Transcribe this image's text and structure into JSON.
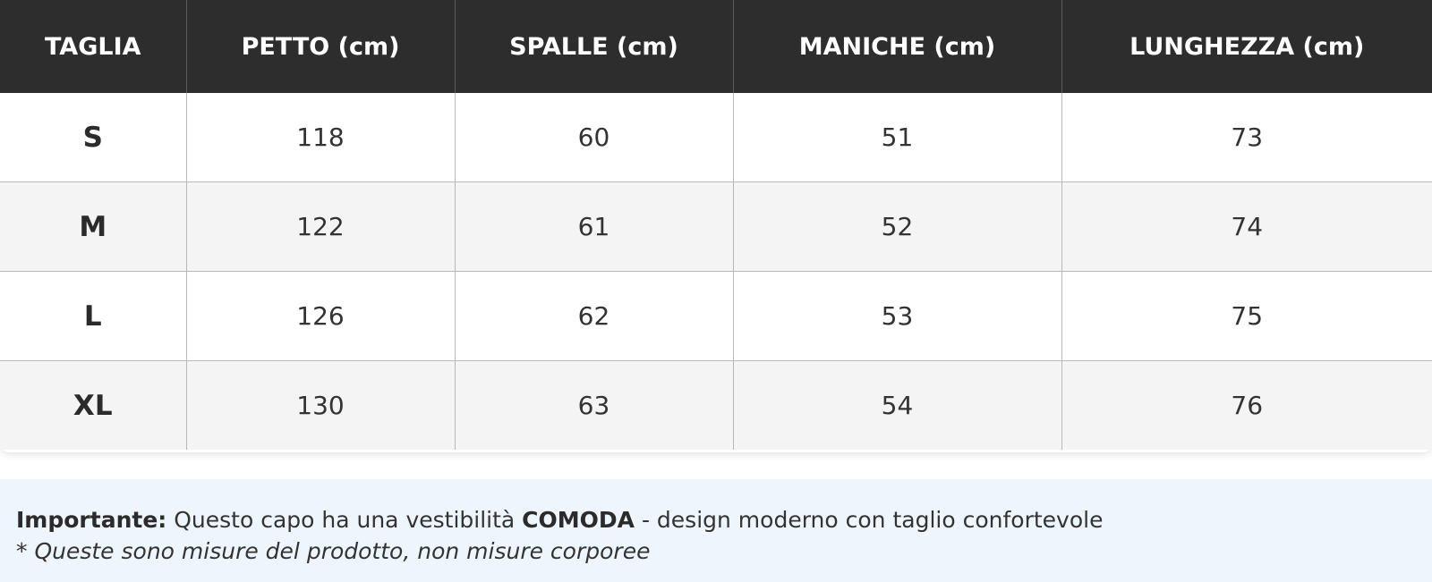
{
  "table": {
    "headers": [
      "TAGLIA",
      "PETTO (cm)",
      "SPALLE (cm)",
      "MANICHE (cm)",
      "LUNGHEZZA (cm)"
    ],
    "rows": [
      [
        "S",
        "118",
        "60",
        "51",
        "73"
      ],
      [
        "M",
        "122",
        "61",
        "52",
        "74"
      ],
      [
        "L",
        "126",
        "62",
        "53",
        "75"
      ],
      [
        "XL",
        "130",
        "63",
        "54",
        "76"
      ]
    ]
  },
  "note": {
    "important_label": "Importante:",
    "text_before": " Questo capo ha una vestibilità ",
    "fit": "COMODA",
    "text_after": " - design moderno con taglio confortevole",
    "disclaimer": "* Queste sono misure del prodotto, non misure corporee"
  },
  "colors": {
    "header_bg": "#2d2d2d",
    "alt_row_bg": "#f4f4f4",
    "note_bg": "#eef5fd"
  }
}
